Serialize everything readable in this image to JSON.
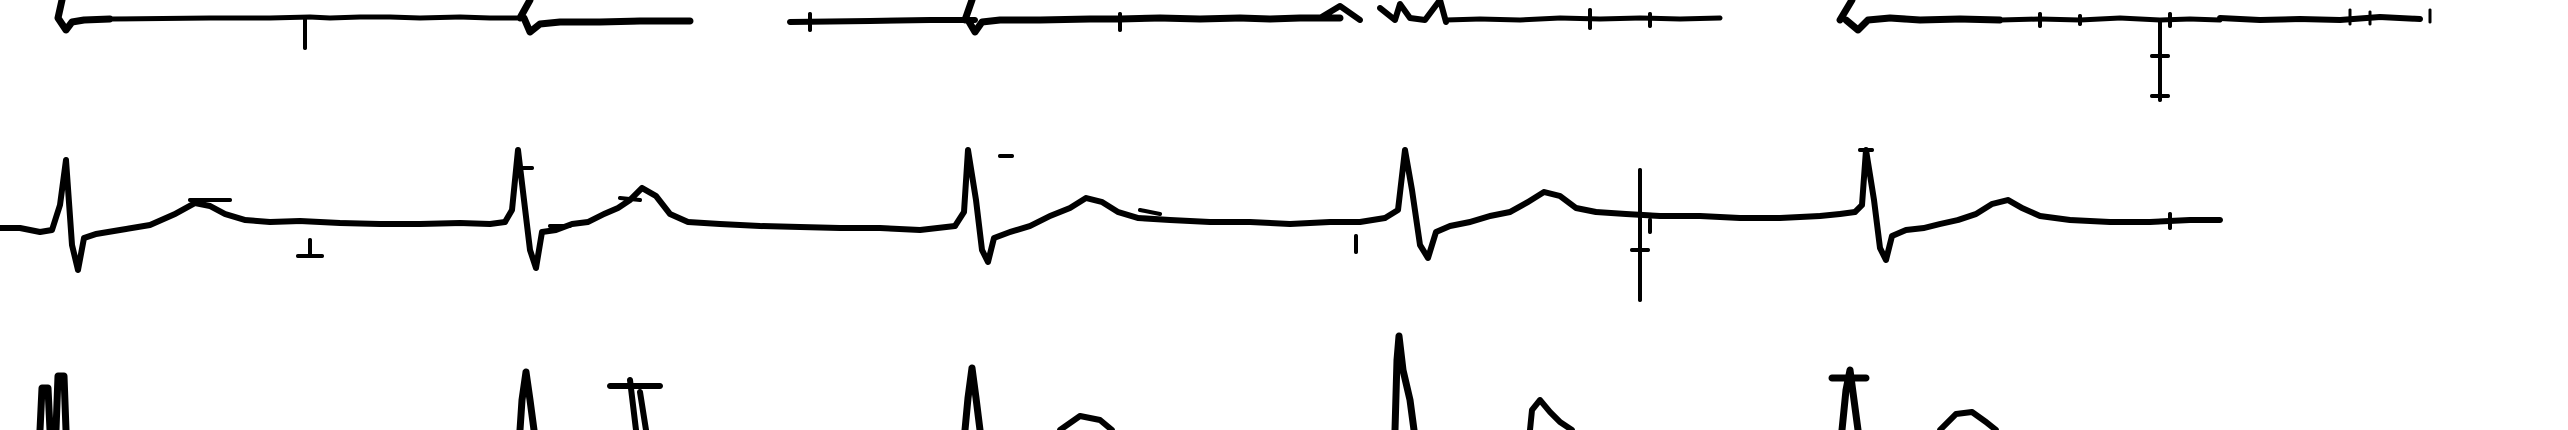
{
  "figure": {
    "kind": "ecg-rhythm-strip",
    "background_color": "#ffffff",
    "trace_color": "#000000",
    "rows": [
      {
        "name": "top-lead",
        "label": ""
      },
      {
        "name": "middle-lead",
        "label": ""
      },
      {
        "name": "bottom-lead",
        "label": ""
      }
    ]
  }
}
